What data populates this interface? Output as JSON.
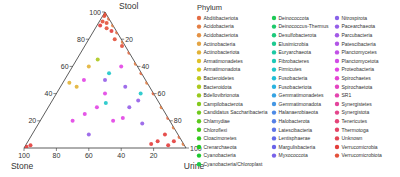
{
  "chart_data": {
    "type": "ternary",
    "stool_axis": {
      "label": "Stool",
      "lim": [
        0,
        100
      ],
      "ticks": [
        20,
        40,
        60,
        80,
        100
      ]
    },
    "stone_axis": {
      "label": "Stone",
      "lim": [
        0,
        100
      ],
      "ticks": [
        20,
        40,
        60,
        80,
        100
      ]
    },
    "urine_axis": {
      "label": "Urine",
      "lim": [
        0,
        100
      ],
      "ticks": [
        20,
        40,
        60,
        80,
        100
      ]
    },
    "legend_title": "Phylum",
    "series": [
      {
        "name": "Abditibacteriota",
        "color": "hsl(15,75%,58%)",
        "stone": [
          0,
          0,
          0,
          0,
          0,
          0,
          0
        ],
        "stool": [
          95,
          85,
          70,
          55,
          40,
          22,
          8
        ],
        "urine": [
          5,
          15,
          30,
          45,
          60,
          78,
          92
        ]
      },
      {
        "name": "Acidobacteria",
        "color": "hsl(22,75%,58%)",
        "stone": [
          0,
          0,
          0,
          0,
          0,
          0,
          0
        ],
        "stool": [
          90,
          78,
          62,
          48,
          30,
          15,
          3
        ],
        "urine": [
          10,
          22,
          38,
          52,
          70,
          85,
          97
        ]
      },
      {
        "name": "Acidobacteriota",
        "color": "hsl(29,75%,58%)",
        "stone": [],
        "stool": [],
        "urine": []
      },
      {
        "name": "Actinobacteria",
        "color": "hsl(36,75%,58%)",
        "stone": [],
        "stool": [],
        "urine": []
      },
      {
        "name": "Actinobacteriota",
        "color": "hsl(43,75%,55%)",
        "stone": [
          30,
          48,
          45
        ],
        "stool": [
          60,
          48,
          45
        ],
        "urine": [
          10,
          4,
          10
        ]
      },
      {
        "name": "Armatimonadetes",
        "color": "hsl(50,75%,52%)",
        "stone": [],
        "stool": [],
        "urine": []
      },
      {
        "name": "Armatimonadota",
        "color": "hsl(57,75%,48%)",
        "stone": [],
        "stool": [],
        "urine": []
      },
      {
        "name": "Bacteroidetes",
        "color": "hsl(63,75%,45%)",
        "stone": [],
        "stool": [],
        "urine": []
      },
      {
        "name": "Bacteroidota",
        "color": "hsl(70,75%,45%)",
        "stone": [
          22
        ],
        "stool": [
          65
        ],
        "urine": [
          13
        ]
      },
      {
        "name": "Bdellovibrionota",
        "color": "hsl(77,75%,45%)",
        "stone": [],
        "stool": [],
        "urine": []
      },
      {
        "name": "Campilobacterota",
        "color": "hsl(84,75%,45%)",
        "stone": [],
        "stool": [],
        "urine": []
      },
      {
        "name": "Candidatus Saccharibacteria",
        "color": "hsl(91,75%,45%)",
        "stone": [],
        "stool": [],
        "urine": []
      },
      {
        "name": "Chlamydiae",
        "color": "hsl(98,75%,45%)",
        "stone": [],
        "stool": [],
        "urine": []
      },
      {
        "name": "Chloroflexi",
        "color": "hsl(105,75%,45%)",
        "stone": [],
        "stool": [],
        "urine": []
      },
      {
        "name": "Cloacimonetes",
        "color": "hsl(112,75%,45%)",
        "stone": [],
        "stool": [],
        "urine": []
      },
      {
        "name": "Crenarchaeota",
        "color": "hsl(119,75%,45%)",
        "stone": [],
        "stool": [],
        "urine": []
      },
      {
        "name": "Cyanobacteria",
        "color": "hsl(126,75%,45%)",
        "stone": [],
        "stool": [],
        "urine": []
      },
      {
        "name": "Cyanobacteria/Chloroplast",
        "color": "hsl(133,75%,45%)",
        "stone": [],
        "stool": [],
        "urine": []
      },
      {
        "name": "Deinococcota",
        "color": "hsl(140,75%,45%)",
        "stone": [],
        "stool": [],
        "urine": []
      },
      {
        "name": "Deinococcus-Thermus",
        "color": "hsl(147,75%,45%)",
        "stone": [],
        "stool": [],
        "urine": []
      },
      {
        "name": "Desulfobacterota",
        "color": "hsl(153,75%,45%)",
        "stone": [],
        "stool": [],
        "urine": []
      },
      {
        "name": "Elusimicrobia",
        "color": "hsl(160,75%,45%)",
        "stone": [],
        "stool": [],
        "urine": []
      },
      {
        "name": "Euryarchaeota",
        "color": "hsl(167,75%,45%)",
        "stone": [],
        "stool": [],
        "urine": []
      },
      {
        "name": "Fibrobacteres",
        "color": "hsl(174,75%,45%)",
        "stone": [],
        "stool": [],
        "urine": []
      },
      {
        "name": "Firmicutes",
        "color": "hsl(181,75%,45%)",
        "stone": [
          20,
          8,
          33
        ],
        "stool": [
          55,
          40,
          33
        ],
        "urine": [
          25,
          52,
          34
        ]
      },
      {
        "name": "Fusobacteria",
        "color": "hsl(188,75%,48%)",
        "stone": [],
        "stool": [],
        "urine": []
      },
      {
        "name": "Fusobacteriota",
        "color": "hsl(195,75%,52%)",
        "stone": [],
        "stool": [],
        "urine": []
      },
      {
        "name": "Gemmatimonadetes",
        "color": "hsl(202,75%,55%)",
        "stone": [],
        "stool": [],
        "urine": []
      },
      {
        "name": "Gemmatimonadota",
        "color": "hsl(209,75%,58%)",
        "stone": [],
        "stool": [],
        "urine": []
      },
      {
        "name": "Halanaerobiaeota",
        "color": "hsl(216,75%,60%)",
        "stone": [],
        "stool": [],
        "urine": []
      },
      {
        "name": "Halobacterota",
        "color": "hsl(223,75%,62%)",
        "stone": [],
        "stool": [],
        "urine": []
      },
      {
        "name": "Latescibacteria",
        "color": "hsl(230,75%,64%)",
        "stone": [],
        "stool": [],
        "urine": []
      },
      {
        "name": "Lentisphaerae",
        "color": "hsl(237,75%,65%)",
        "stone": [],
        "stool": [],
        "urine": []
      },
      {
        "name": "Margulisbacteria",
        "color": "hsl(243,75%,65%)",
        "stone": [],
        "stool": [],
        "urine": []
      },
      {
        "name": "Myxococcota",
        "color": "hsl(250,75%,65%)",
        "stone": [],
        "stool": [],
        "urine": []
      },
      {
        "name": "Nitrospirota",
        "color": "hsl(257,75%,65%)",
        "stone": [],
        "stool": [],
        "urine": []
      },
      {
        "name": "Pacearchaeota",
        "color": "hsl(264,75%,64%)",
        "stone": [
          25,
          20,
          15,
          12,
          18,
          55
        ],
        "stool": [
          50,
          30,
          45,
          35,
          18,
          10
        ],
        "urine": [
          25,
          50,
          40,
          53,
          64,
          35
        ]
      },
      {
        "name": "Parcubacteria",
        "color": "hsl(271,75%,63%)",
        "stone": [],
        "stool": [],
        "urine": []
      },
      {
        "name": "Patescibacteria",
        "color": "hsl(278,75%,62%)",
        "stone": [],
        "stool": [],
        "urine": []
      },
      {
        "name": "Planctomycetes",
        "color": "hsl(285,75%,61%)",
        "stone": [],
        "stool": [],
        "urine": []
      },
      {
        "name": "Planctomycetota",
        "color": "hsl(292,75%,60%)",
        "stone": [],
        "stool": [],
        "urine": []
      },
      {
        "name": "Proteobacteria",
        "color": "hsl(299,75%,58%)",
        "stone": [
          30,
          40,
          35,
          50,
          10,
          28,
          60,
          38
        ],
        "stool": [
          40,
          30,
          20,
          25,
          60,
          22,
          20,
          50
        ],
        "urine": [
          30,
          30,
          45,
          25,
          30,
          50,
          20,
          12
        ]
      },
      {
        "name": "Spirochaetes",
        "color": "hsl(306,75%,58%)",
        "stone": [],
        "stool": [],
        "urine": []
      },
      {
        "name": "Spirochaetota",
        "color": "hsl(313,75%,58%)",
        "stone": [],
        "stool": [],
        "urine": []
      },
      {
        "name": "SR1",
        "color": "hsl(320,75%,58%)",
        "stone": [],
        "stool": [],
        "urine": []
      },
      {
        "name": "Synergistetes",
        "color": "hsl(327,75%,58%)",
        "stone": [],
        "stool": [],
        "urine": []
      },
      {
        "name": "Synergistota",
        "color": "hsl(333,75%,58%)",
        "stone": [],
        "stool": [],
        "urine": []
      },
      {
        "name": "Tenericutes",
        "color": "hsl(340,75%,58%)",
        "stone": [],
        "stool": [],
        "urine": []
      },
      {
        "name": "Thermotoga",
        "color": "hsl(347,75%,58%)",
        "stone": [],
        "stool": [],
        "urine": []
      },
      {
        "name": "Unknown",
        "color": "hsl(354,75%,58%)",
        "stone": [],
        "stool": [],
        "urine": []
      },
      {
        "name": "Verrucomicrobia",
        "color": "hsl(1,75%,56%)",
        "stone": [
          8,
          3,
          5,
          10,
          8,
          15,
          20,
          98,
          95
        ],
        "stool": [
          90,
          86,
          5,
          2,
          10,
          5,
          3,
          1,
          2
        ],
        "urine": [
          2,
          11,
          90,
          88,
          82,
          80,
          77,
          1,
          3
        ]
      },
      {
        "name": "Verrucomicrobiota",
        "color": "hsl(8,75%,56%)",
        "stone": [
          0,
          2,
          3,
          5,
          4,
          2,
          1,
          5
        ],
        "stool": [
          100,
          97,
          92,
          88,
          80,
          75,
          98,
          93
        ],
        "urine": [
          0,
          1,
          5,
          7,
          16,
          23,
          1,
          2
        ]
      }
    ]
  }
}
